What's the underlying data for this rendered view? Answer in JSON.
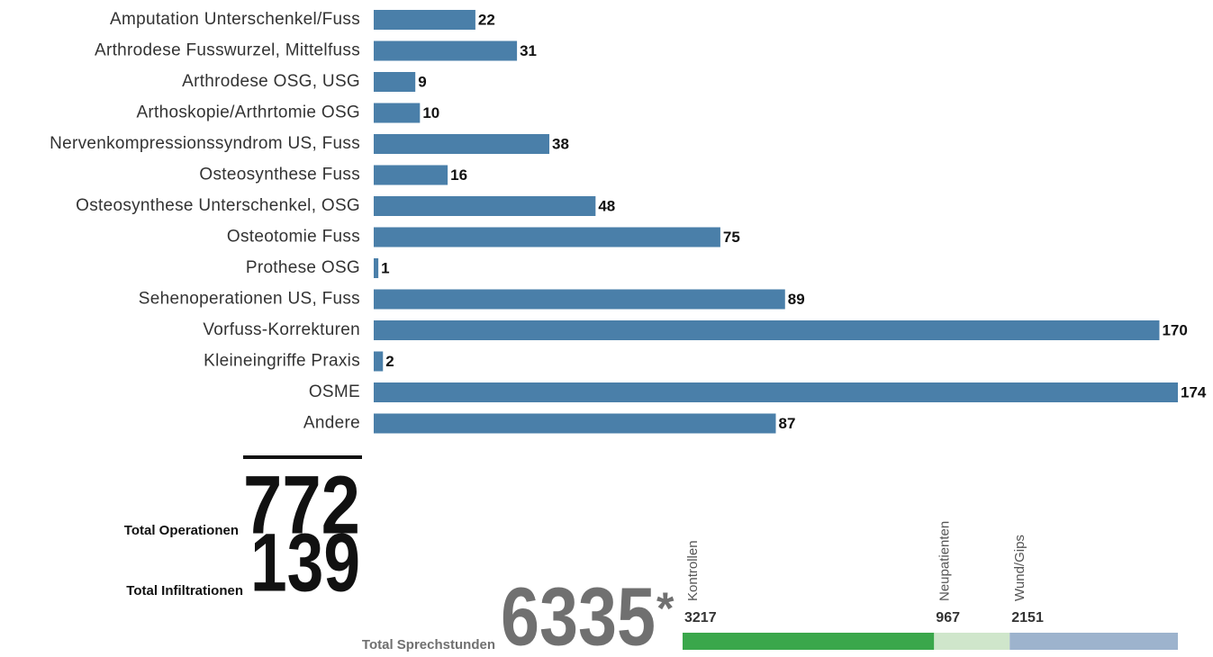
{
  "chart_data": [
    {
      "type": "hbar",
      "categories": [
        "Amputation Unterschenkel/Fuss",
        "Arthrodese Fusswurzel, Mittelfuss",
        "Arthrodese OSG, USG",
        "Arthoskopie/Arthrtomie OSG",
        "Nervenkompressionssyndrom US, Fuss",
        "Osteosynthese Fuss",
        "Osteosynthese Unterschenkel, OSG",
        "Osteotomie Fuss",
        "Prothese OSG",
        "Sehenoperationen US, Fuss",
        "Vorfuss-Korrekturen",
        "Kleineingriffe Praxis",
        "OSME",
        "Andere"
      ],
      "values": [
        22,
        31,
        9,
        10,
        38,
        16,
        48,
        75,
        1,
        89,
        170,
        2,
        174,
        87
      ],
      "color": "#4a7fa9"
    },
    {
      "type": "stacked_hbar",
      "series": [
        {
          "name": "Kontrollen",
          "color": "#3aa74b",
          "values": [
            3217
          ]
        },
        {
          "name": "Neupatienten",
          "color": "#cfe6cb",
          "values": [
            967
          ]
        },
        {
          "name": "Wund/Gips",
          "color": "#9db3cd",
          "values": [
            2151
          ]
        }
      ]
    }
  ],
  "totals": [
    {
      "label": "Total Operationen",
      "value": 772
    },
    {
      "label": "Total Infiltrationen",
      "value": 139
    },
    {
      "label": "Total Sprechstunden",
      "value": 6335,
      "marker": "*"
    }
  ]
}
